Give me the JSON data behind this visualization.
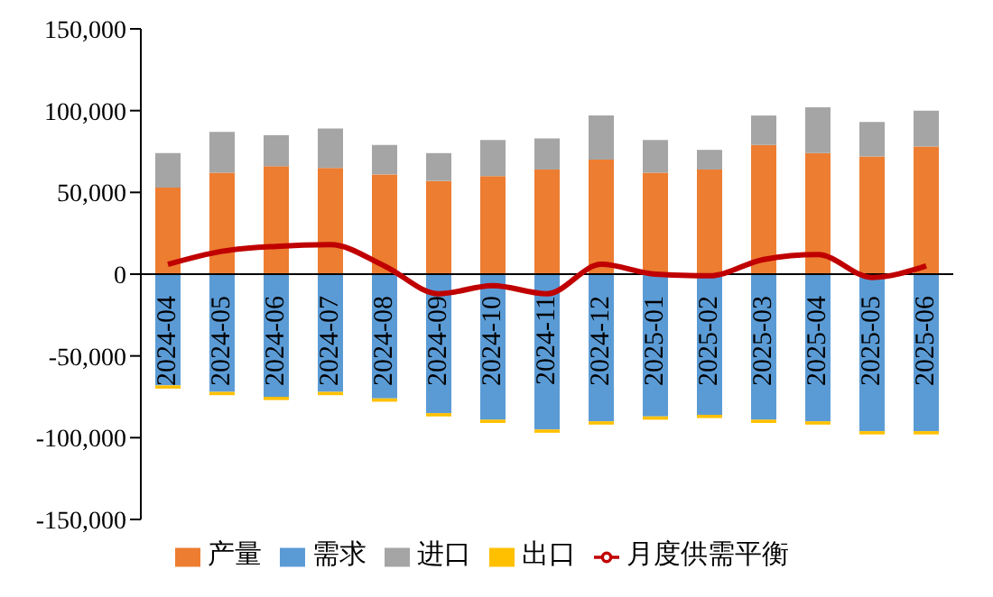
{
  "chart_data": {
    "type": "bar",
    "stacked": true,
    "categories": [
      "2024-04",
      "2024-05",
      "2024-06",
      "2024-07",
      "2024-08",
      "2024-09",
      "2024-10",
      "2024-11",
      "2024-12",
      "2025-01",
      "2025-02",
      "2025-03",
      "2025-04",
      "2025-05",
      "2025-06"
    ],
    "series": [
      {
        "name": "产量",
        "color": "#ed7d31",
        "values": [
          53000,
          62000,
          66000,
          65000,
          61000,
          57000,
          60000,
          64000,
          70000,
          62000,
          64000,
          79000,
          74000,
          72000,
          78000
        ]
      },
      {
        "name": "需求",
        "color": "#5b9bd5",
        "values": [
          -68000,
          -72000,
          -75000,
          -72000,
          -76000,
          -85000,
          -89000,
          -95000,
          -90000,
          -87000,
          -86000,
          -89000,
          -90000,
          -96000,
          -96000
        ]
      },
      {
        "name": "进口",
        "color": "#a5a5a5",
        "values": [
          21000,
          25000,
          19000,
          24000,
          18000,
          17000,
          22000,
          19000,
          27000,
          20000,
          12000,
          18000,
          28000,
          21000,
          22000
        ]
      },
      {
        "name": "出口",
        "color": "#ffc000",
        "values": [
          -2000,
          -2000,
          -2000,
          -2000,
          -2000,
          -2000,
          -2000,
          -2000,
          -2000,
          -2000,
          -2000,
          -2000,
          -2000,
          -2000,
          -2000
        ]
      },
      {
        "name": "月度供需平衡",
        "type": "line",
        "color": "#c00000",
        "values": [
          6000,
          14000,
          17000,
          18000,
          5000,
          -12000,
          -7000,
          -12000,
          6000,
          0,
          -1000,
          9000,
          12000,
          -2000,
          5000
        ]
      }
    ],
    "ylim": [
      -150000,
      150000
    ],
    "yticks": [
      {
        "value": -150000,
        "label": "-150,000"
      },
      {
        "value": -100000,
        "label": "-100,000"
      },
      {
        "value": -50000,
        "label": "-50,000"
      },
      0,
      {
        "value": 50000,
        "label": "50,000"
      },
      {
        "value": 100000,
        "label": "100,000"
      },
      {
        "value": 150000,
        "label": "150,000"
      }
    ],
    "legend": "bottom",
    "marker": "none"
  }
}
